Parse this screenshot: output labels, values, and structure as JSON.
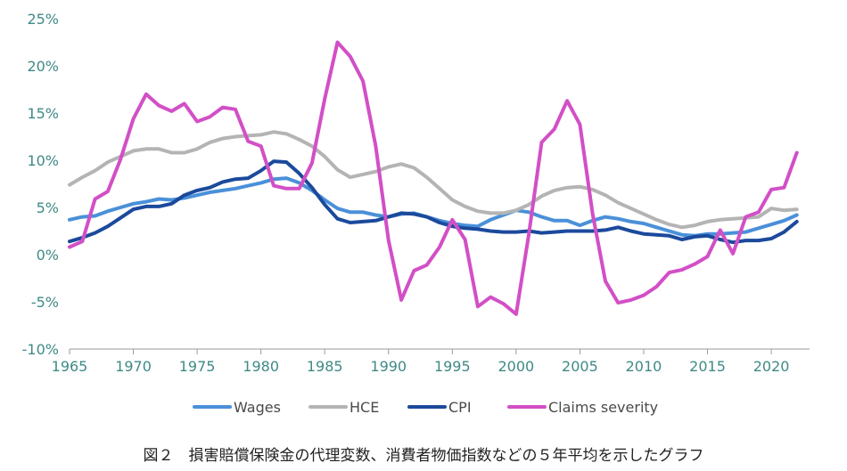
{
  "chart_data": {
    "type": "line",
    "title": "",
    "xlabel": "",
    "ylabel": "",
    "xlim": [
      1965,
      2023
    ],
    "ylim": [
      -10,
      25
    ],
    "y_unit": "%",
    "xticks": [
      1965,
      1970,
      1975,
      1980,
      1985,
      1990,
      1995,
      2000,
      2005,
      2010,
      2015,
      2020
    ],
    "yticks": [
      -10,
      -5,
      0,
      5,
      10,
      15,
      20,
      25
    ],
    "grid": false,
    "legend_position": "bottom",
    "x": [
      1965,
      1966,
      1967,
      1968,
      1969,
      1970,
      1971,
      1972,
      1973,
      1974,
      1975,
      1976,
      1977,
      1978,
      1979,
      1980,
      1981,
      1982,
      1983,
      1984,
      1985,
      1986,
      1987,
      1988,
      1989,
      1990,
      1991,
      1992,
      1993,
      1994,
      1995,
      1996,
      1997,
      1998,
      1999,
      2000,
      2001,
      2002,
      2003,
      2004,
      2005,
      2006,
      2007,
      2008,
      2009,
      2010,
      2011,
      2012,
      2013,
      2014,
      2015,
      2016,
      2017,
      2018,
      2019,
      2020,
      2021,
      2022
    ],
    "series": [
      {
        "name": "Wages",
        "color": "#4a90d9",
        "values": [
          3.7,
          4.0,
          4.1,
          4.6,
          5.0,
          5.4,
          5.6,
          5.9,
          5.8,
          6.0,
          6.3,
          6.6,
          6.8,
          7.0,
          7.3,
          7.6,
          8.0,
          8.1,
          7.6,
          6.8,
          5.8,
          4.9,
          4.5,
          4.5,
          4.2,
          4.0,
          4.3,
          4.4,
          4.0,
          3.6,
          3.3,
          3.1,
          3.0,
          3.7,
          4.2,
          4.7,
          4.5,
          4.0,
          3.6,
          3.6,
          3.1,
          3.6,
          4.0,
          3.8,
          3.5,
          3.3,
          2.9,
          2.5,
          2.1,
          2.0,
          2.2,
          2.2,
          2.3,
          2.4,
          2.8,
          3.2,
          3.6,
          4.2
        ]
      },
      {
        "name": "HCE",
        "color": "#b4b4b4",
        "values": [
          7.4,
          8.2,
          8.9,
          9.8,
          10.4,
          11.0,
          11.2,
          11.2,
          10.8,
          10.8,
          11.2,
          11.9,
          12.3,
          12.5,
          12.6,
          12.7,
          13.0,
          12.8,
          12.2,
          11.5,
          10.4,
          9.0,
          8.2,
          8.5,
          8.8,
          9.3,
          9.6,
          9.2,
          8.2,
          7.0,
          5.8,
          5.1,
          4.6,
          4.4,
          4.4,
          4.7,
          5.3,
          6.2,
          6.8,
          7.1,
          7.2,
          6.9,
          6.3,
          5.5,
          4.9,
          4.3,
          3.7,
          3.2,
          2.9,
          3.1,
          3.5,
          3.7,
          3.8,
          3.9,
          4.0,
          4.9,
          4.7,
          4.8
        ]
      },
      {
        "name": "CPI",
        "color": "#1b4a9c",
        "values": [
          1.4,
          1.8,
          2.3,
          3.0,
          3.9,
          4.8,
          5.1,
          5.1,
          5.4,
          6.3,
          6.8,
          7.1,
          7.7,
          8.0,
          8.1,
          8.9,
          9.9,
          9.8,
          8.6,
          7.1,
          5.3,
          3.8,
          3.4,
          3.5,
          3.6,
          4.0,
          4.4,
          4.3,
          4.0,
          3.4,
          3.0,
          2.8,
          2.7,
          2.5,
          2.4,
          2.4,
          2.5,
          2.3,
          2.4,
          2.5,
          2.5,
          2.5,
          2.6,
          2.9,
          2.5,
          2.2,
          2.1,
          2.0,
          1.6,
          1.9,
          2.0,
          1.6,
          1.3,
          1.5,
          1.5,
          1.7,
          2.4,
          3.5
        ]
      },
      {
        "name": "Claims severity",
        "color": "#d24fc6",
        "values": [
          0.8,
          1.4,
          5.9,
          6.7,
          10.1,
          14.4,
          17.0,
          15.8,
          15.2,
          16.0,
          14.1,
          14.6,
          15.6,
          15.4,
          12.0,
          11.5,
          7.3,
          7.0,
          7.0,
          9.7,
          16.5,
          22.5,
          21.0,
          18.4,
          11.5,
          1.5,
          -4.8,
          -1.7,
          -1.1,
          0.8,
          3.7,
          1.6,
          -5.5,
          -4.5,
          -5.2,
          -6.3,
          2.2,
          11.9,
          13.3,
          16.3,
          13.8,
          4.3,
          -2.8,
          -5.1,
          -4.8,
          -4.3,
          -3.4,
          -1.9,
          -1.6,
          -1.0,
          -0.2,
          2.6,
          0.1,
          4.0,
          4.5,
          6.9,
          7.1,
          10.8
        ]
      }
    ]
  },
  "caption": "図２　損害賠償保険金の代理変数、消費者物価指数などの５年平均を示したグラフ"
}
